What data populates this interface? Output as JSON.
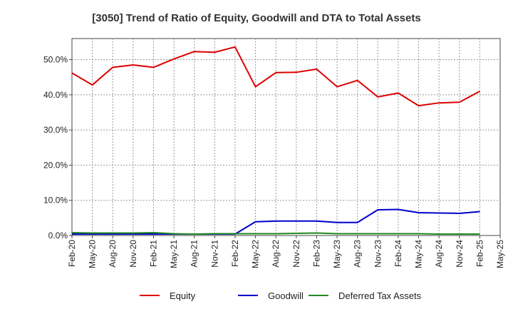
{
  "chart_data": {
    "type": "line",
    "title": "[3050]  Trend of Ratio of Equity, Goodwill and DTA to Total Assets",
    "xlabel": "",
    "ylabel": "",
    "x_ticks": [
      "Feb-20",
      "May-20",
      "Aug-20",
      "Nov-20",
      "Feb-21",
      "May-21",
      "Aug-21",
      "Nov-21",
      "Feb-22",
      "May-22",
      "Aug-22",
      "Nov-22",
      "Feb-23",
      "May-23",
      "Aug-23",
      "Nov-23",
      "Feb-24",
      "May-24",
      "Aug-24",
      "Nov-24",
      "Feb-25",
      "May-25"
    ],
    "x": [
      "Feb-20",
      "May-20",
      "Aug-20",
      "Nov-20",
      "Feb-21",
      "May-21",
      "Aug-21",
      "Nov-21",
      "Feb-22",
      "May-22",
      "Aug-22",
      "Nov-22",
      "Feb-23",
      "May-23",
      "Aug-23",
      "Nov-23",
      "Feb-24",
      "May-24",
      "Aug-24",
      "Nov-24",
      "Feb-25"
    ],
    "y_ticks": [
      "0.0%",
      "10.0%",
      "20.0%",
      "30.0%",
      "40.0%",
      "50.0%"
    ],
    "ylim": [
      0,
      56
    ],
    "grid": true,
    "legend_position": "bottom",
    "series": [
      {
        "name": "Equity",
        "color": "#dd0000",
        "values": [
          46.2,
          42.8,
          47.8,
          48.5,
          47.8,
          50.2,
          52.3,
          52.1,
          53.6,
          42.3,
          46.3,
          46.4,
          47.3,
          42.3,
          44.1,
          39.4,
          40.5,
          36.9,
          37.7,
          37.9,
          41.0
        ]
      },
      {
        "name": "Goodwill",
        "color": "#0000cc",
        "values": [
          0.4,
          0.4,
          0.4,
          0.4,
          0.4,
          0.4,
          0.4,
          0.4,
          0.4,
          3.9,
          4.1,
          4.1,
          4.1,
          3.7,
          3.7,
          7.3,
          7.4,
          6.5,
          6.4,
          6.3,
          6.8
        ]
      },
      {
        "name": "Deferred Tax Assets",
        "color": "#228822",
        "values": [
          0.8,
          0.7,
          0.7,
          0.7,
          0.8,
          0.5,
          0.4,
          0.5,
          0.5,
          0.5,
          0.5,
          0.6,
          0.7,
          0.5,
          0.5,
          0.5,
          0.5,
          0.5,
          0.4,
          0.4,
          0.4
        ]
      }
    ]
  }
}
